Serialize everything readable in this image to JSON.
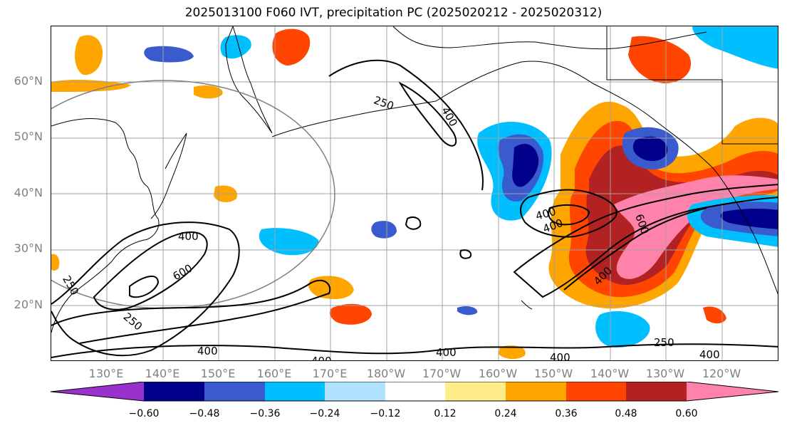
{
  "title": "2025013100 F060 IVT, precipitation PC (2025020212 - 2025020312)",
  "latitude_labels": [
    "60°N",
    "50°N",
    "40°N",
    "30°N",
    "20°N"
  ],
  "longitude_labels": [
    "130°E",
    "140°E",
    "150°E",
    "160°E",
    "170°E",
    "180°W",
    "170°W",
    "160°W",
    "150°W",
    "140°W",
    "130°W",
    "120°W"
  ],
  "contour_labels": [
    "250",
    "400",
    "400",
    "600",
    "250",
    "400",
    "250",
    "400",
    "600",
    "400",
    "400",
    "400",
    "400",
    "400",
    "250",
    "400"
  ],
  "colorbar": {
    "tick_labels": [
      "−0.60",
      "−0.48",
      "−0.36",
      "−0.24",
      "−0.12",
      "0.12",
      "0.24",
      "0.36",
      "0.48",
      "0.60"
    ],
    "colors": [
      "#9932cc",
      "#00008b",
      "#3a5bcd",
      "#00bfff",
      "#b0e2ff",
      "#ffffff",
      "#ffec8b",
      "#ffa500",
      "#ff4500",
      "#b22222",
      "#ff82ab"
    ]
  },
  "colors": {
    "contour": "#000000",
    "grid": "#a0a0a0",
    "coastline": "#000000",
    "circle": "#808080"
  }
}
